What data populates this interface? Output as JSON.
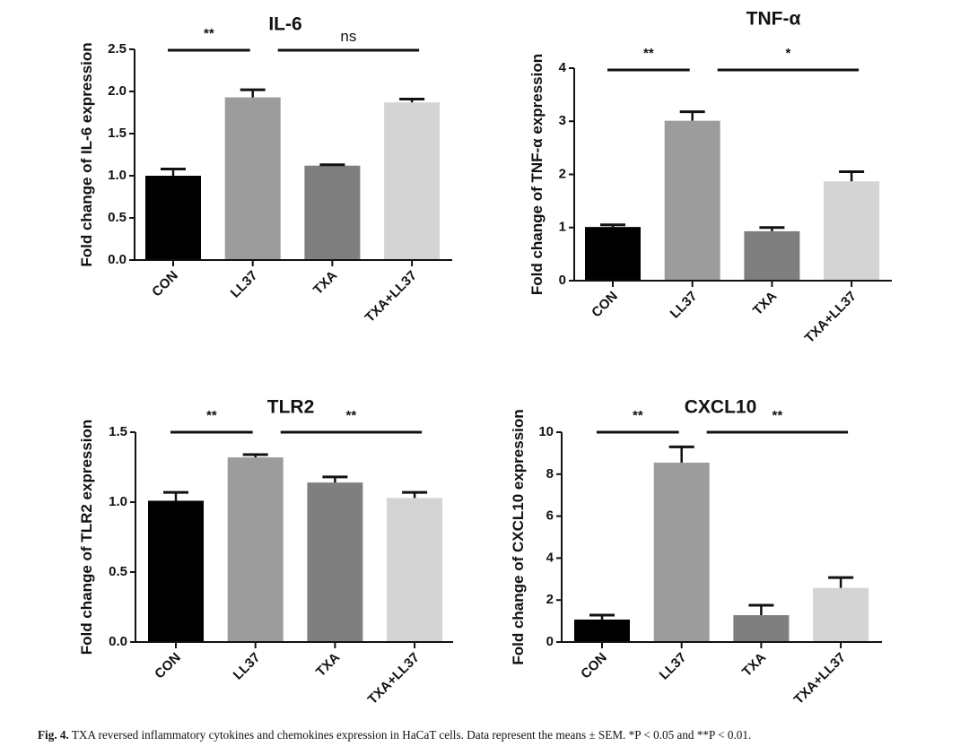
{
  "chart_data": [
    {
      "type": "bar",
      "title": "IL-6",
      "xlabel": "",
      "ylabel": "Fold change of IL-6 expression",
      "categories": [
        "CON",
        "LL37",
        "TXA",
        "TXA+LL37"
      ],
      "values": [
        1.0,
        1.93,
        1.12,
        1.87
      ],
      "errors": [
        0.08,
        0.09,
        0.01,
        0.04
      ],
      "ylim": [
        0,
        2.5
      ],
      "yticks": [
        0.0,
        0.5,
        1.0,
        1.5,
        2.0,
        2.5
      ],
      "ytick_labels": [
        "0.0",
        "0.5",
        "1.0",
        "1.5",
        "2.0",
        "2.5"
      ],
      "bar_colors": [
        "#000000",
        "#9c9c9c",
        "#7f7f7f",
        "#d4d4d4"
      ],
      "significance": [
        {
          "from": "CON",
          "to": "LL37",
          "label": "**"
        },
        {
          "from": "TXA",
          "to": "TXA+LL37",
          "label": "ns",
          "span_from": "LL37"
        }
      ],
      "grid": false,
      "legend": "none"
    },
    {
      "type": "bar",
      "title": "TNF-α",
      "xlabel": "",
      "ylabel": "Fold change of TNF-α expression",
      "categories": [
        "CON",
        "LL37",
        "TXA",
        "TXA+LL37"
      ],
      "values": [
        1.01,
        3.01,
        0.93,
        1.87
      ],
      "errors": [
        0.04,
        0.17,
        0.07,
        0.18
      ],
      "ylim": [
        0,
        4
      ],
      "yticks": [
        0,
        1,
        2,
        3,
        4
      ],
      "ytick_labels": [
        "0",
        "1",
        "2",
        "3",
        "4"
      ],
      "bar_colors": [
        "#000000",
        "#9c9c9c",
        "#7f7f7f",
        "#d4d4d4"
      ],
      "significance": [
        {
          "from": "CON",
          "to": "LL37",
          "label": "**"
        },
        {
          "from": "LL37",
          "to": "TXA+LL37",
          "label": "*"
        }
      ],
      "grid": false,
      "legend": "none"
    },
    {
      "type": "bar",
      "title": "TLR2",
      "xlabel": "",
      "ylabel": "Fold change of TLR2 expression",
      "categories": [
        "CON",
        "LL37",
        "TXA",
        "TXA+LL37"
      ],
      "values": [
        1.01,
        1.32,
        1.14,
        1.03
      ],
      "errors": [
        0.06,
        0.02,
        0.04,
        0.04
      ],
      "ylim": [
        0,
        1.5
      ],
      "yticks": [
        0.0,
        0.5,
        1.0,
        1.5
      ],
      "ytick_labels": [
        "0.0",
        "0.5",
        "1.0",
        "1.5"
      ],
      "bar_colors": [
        "#000000",
        "#9c9c9c",
        "#7f7f7f",
        "#d4d4d4"
      ],
      "significance": [
        {
          "from": "CON",
          "to": "LL37",
          "label": "**"
        },
        {
          "from": "LL37",
          "to": "TXA+LL37",
          "label": "**"
        }
      ],
      "grid": false,
      "legend": "none"
    },
    {
      "type": "bar",
      "title": "CXCL10",
      "xlabel": "",
      "ylabel": "Fold change of CXCL10 expression",
      "categories": [
        "CON",
        "LL37",
        "TXA",
        "TXA+LL37"
      ],
      "values": [
        1.07,
        8.55,
        1.28,
        2.58
      ],
      "errors": [
        0.21,
        0.75,
        0.47,
        0.49
      ],
      "ylim": [
        0,
        10
      ],
      "yticks": [
        0,
        2,
        4,
        6,
        8,
        10
      ],
      "ytick_labels": [
        "0",
        "2",
        "4",
        "6",
        "8",
        "10"
      ],
      "bar_colors": [
        "#000000",
        "#9c9c9c",
        "#7f7f7f",
        "#d4d4d4"
      ],
      "significance": [
        {
          "from": "CON",
          "to": "LL37",
          "label": "**"
        },
        {
          "from": "LL37",
          "to": "TXA+LL37",
          "label": "**"
        }
      ],
      "grid": false,
      "legend": "none"
    }
  ],
  "caption": {
    "figure_number": "Fig. 4.",
    "text": " TXA reversed inflammatory cytokines and chemokines expression in HaCaT cells. Data represent the means ± SEM. *P < 0.05 and **P < 0.01."
  }
}
